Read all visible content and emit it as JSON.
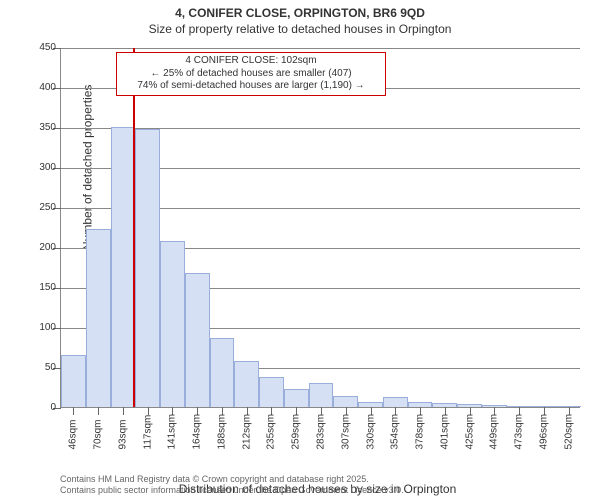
{
  "header": {
    "title": "4, CONIFER CLOSE, ORPINGTON, BR6 9QD",
    "subtitle": "Size of property relative to detached houses in Orpington"
  },
  "chart": {
    "type": "histogram",
    "ylim": [
      0,
      450
    ],
    "ytick_step": 50,
    "yticks": [
      0,
      50,
      100,
      150,
      200,
      250,
      300,
      350,
      400,
      450
    ],
    "xcategories": [
      "46sqm",
      "70sqm",
      "93sqm",
      "117sqm",
      "141sqm",
      "164sqm",
      "188sqm",
      "212sqm",
      "235sqm",
      "259sqm",
      "283sqm",
      "307sqm",
      "330sqm",
      "354sqm",
      "378sqm",
      "401sqm",
      "425sqm",
      "449sqm",
      "473sqm",
      "496sqm",
      "520sqm"
    ],
    "values": [
      65,
      222,
      350,
      347,
      208,
      168,
      86,
      58,
      38,
      22,
      30,
      14,
      6,
      12,
      6,
      5,
      4,
      3,
      0,
      0,
      0
    ],
    "bar_color": "#d6e0f5",
    "bar_border": "#9aaedb",
    "bar_width": 1.0,
    "grid_color": "#888888",
    "background_color": "#ffffff",
    "ylabel": "Number of detached properties",
    "xlabel": "Distribution of detached houses by size in Orpington",
    "label_fontsize": 12,
    "tick_fontsize": 10
  },
  "marker": {
    "position_index": 2.4,
    "color": "#cc0000"
  },
  "callout": {
    "line1": "4 CONIFER CLOSE: 102sqm",
    "line2": "← 25% of detached houses are smaller (407)",
    "line3": "74% of semi-detached houses are larger (1,190) →",
    "border_color": "#cc0000",
    "fontsize": 10
  },
  "footer": {
    "line1": "Contains HM Land Registry data © Crown copyright and database right 2025.",
    "line2": "Contains public sector information licensed under the Open Government Licence v3.0."
  }
}
